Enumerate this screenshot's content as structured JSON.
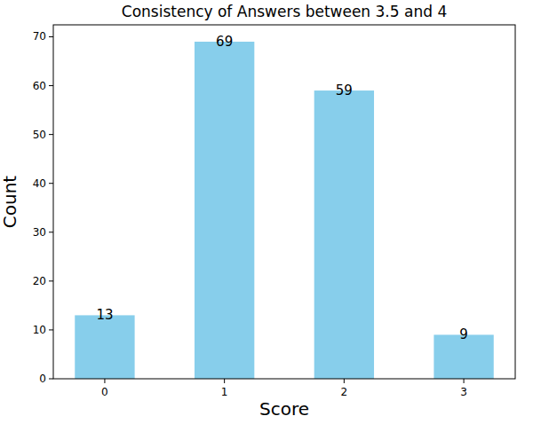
{
  "chart_data": {
    "type": "bar",
    "title": "Consistency of Answers between 3.5 and 4",
    "x_label": "Score",
    "y_label": "Count",
    "categories": [
      "0",
      "1",
      "2",
      "3"
    ],
    "values": [
      13,
      69,
      59,
      9
    ],
    "color": "#87ceeb",
    "ylim": [
      0,
      72.45
    ],
    "yticks": [
      0,
      10,
      20,
      30,
      40,
      50,
      60,
      70
    ],
    "data_labels": true,
    "grid": false
  }
}
